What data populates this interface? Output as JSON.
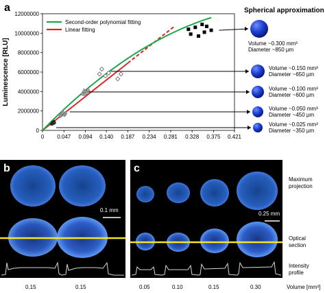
{
  "panels": {
    "a": "a",
    "b": "b",
    "c": "c"
  },
  "chart_data": {
    "type": "scatter",
    "xlabel": "Volume [mm³]",
    "ylabel": "Luminescence [RLU]",
    "xlim": [
      0,
      0.421
    ],
    "ylim": [
      0,
      12000000
    ],
    "x_ticks": [
      "0",
      "0.047",
      "0.094",
      "0.140",
      "0.187",
      "0.234",
      "0.281",
      "0.328",
      "0.375",
      "0.421"
    ],
    "x_tick_values": [
      0,
      0.047,
      0.094,
      0.14,
      0.187,
      0.234,
      0.281,
      0.328,
      0.375,
      0.421
    ],
    "y_ticks": [
      "0",
      "2000000",
      "4000000",
      "6000000",
      "8000000",
      "10000000",
      "12000000"
    ],
    "y_tick_values": [
      0,
      2000000,
      4000000,
      6000000,
      8000000,
      10000000,
      12000000
    ],
    "legend_position": "top-left",
    "legend": [
      {
        "label": "Second-order polynomial fitting",
        "color": "#1aa84a"
      },
      {
        "label": "Linear fitting",
        "color": "#d9242a"
      }
    ],
    "fits": {
      "polynomial": {
        "a": 48000000,
        "b": -45000000,
        "x_max": 0.37
      },
      "linear": {
        "slope": 37000000,
        "solid_until": 0.187,
        "x_max": 0.29
      }
    },
    "series": [
      {
        "marker": "circle-filled",
        "points": [
          [
            0.02,
            650000
          ],
          [
            0.022,
            800000
          ],
          [
            0.025,
            900000
          ],
          [
            0.023,
            700000
          ],
          [
            0.026,
            780000
          ]
        ]
      },
      {
        "marker": "diamond-gray",
        "points": [
          [
            0.04,
            1500000
          ],
          [
            0.042,
            1700000
          ],
          [
            0.045,
            1800000
          ],
          [
            0.048,
            1600000
          ],
          [
            0.05,
            1750000
          ],
          [
            0.044,
            1850000
          ]
        ]
      },
      {
        "marker": "triangle-gray",
        "points": [
          [
            0.088,
            3800000
          ],
          [
            0.091,
            4100000
          ],
          [
            0.094,
            4000000
          ],
          [
            0.097,
            3900000
          ],
          [
            0.1,
            4200000
          ],
          [
            0.093,
            3750000
          ]
        ]
      },
      {
        "marker": "diamond-open",
        "points": [
          [
            0.125,
            5800000
          ],
          [
            0.13,
            6300000
          ],
          [
            0.138,
            5600000
          ],
          [
            0.145,
            5900000
          ],
          [
            0.165,
            5300000
          ],
          [
            0.172,
            5800000
          ]
        ]
      },
      {
        "marker": "square-filled",
        "points": [
          [
            0.32,
            10400000
          ],
          [
            0.325,
            9900000
          ],
          [
            0.335,
            10600000
          ],
          [
            0.342,
            9700000
          ],
          [
            0.35,
            10900000
          ],
          [
            0.355,
            10100000
          ],
          [
            0.36,
            10700000
          ],
          [
            0.37,
            10300000
          ]
        ]
      }
    ]
  },
  "spheres": {
    "title": "Spherical approximation",
    "items": [
      {
        "volume": "Volume ~0.300 mm³",
        "diameter": "Diameter ~850 µm",
        "x_value": 0.375,
        "y_value": 10300000
      },
      {
        "volume": "Volume ~0.150 mm³",
        "diameter": "Diameter ~650 µm",
        "x_value": 0.15,
        "y_value": 7000000
      },
      {
        "volume": "Volume ~0.100 mm³",
        "diameter": "Diameter ~600 µm",
        "x_value": 0.1,
        "y_value": 4000000
      },
      {
        "volume": "Volume ~0.050 mm³",
        "diameter": "Diameter ~450 µm",
        "x_value": 0.06,
        "y_value": 1800000
      },
      {
        "volume": "Volume ~0.025 mm³",
        "diameter": "Diameter ~350 µm",
        "x_value": 0.03,
        "y_value": 700000
      }
    ]
  },
  "panel_b": {
    "scale_bar": "0.1 mm",
    "volumes": [
      "0.15",
      "0.15"
    ]
  },
  "panel_c": {
    "scale_bar": "0.25 mm",
    "volumes": [
      "0.05",
      "0.10",
      "0.15",
      "0.30"
    ]
  },
  "row_labels": {
    "max_projection": [
      "Maximum",
      "projection"
    ],
    "optical_section": [
      "Optical",
      "section"
    ],
    "intensity_profile": [
      "Intensity",
      "profile"
    ]
  },
  "volume_axis_label": "Volume [mm³]"
}
